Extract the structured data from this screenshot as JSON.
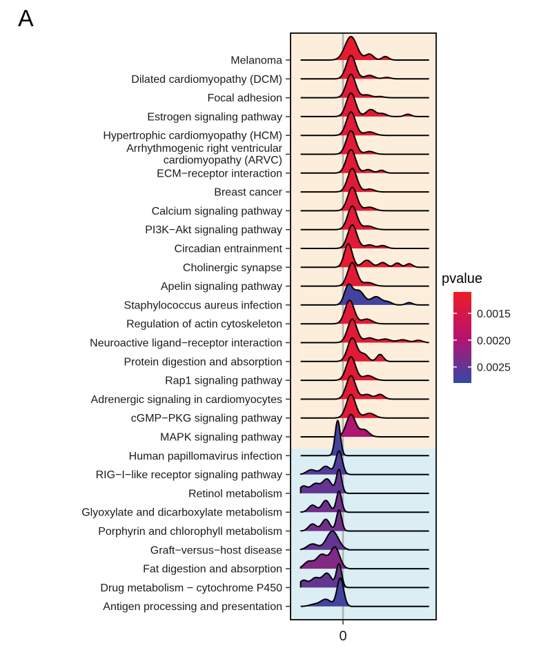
{
  "panel_label": "A",
  "chart_data": {
    "type": "ridgeline",
    "title": "",
    "xlabel": "",
    "ylabel": "",
    "x_ticks": [
      0
    ],
    "xlim": [
      -3.5,
      7.5
    ],
    "grid": false,
    "legend": {
      "title": "pvalue",
      "placement": "right",
      "ticks": [
        0.0015,
        0.002,
        0.0025
      ],
      "tick_labels": [
        "0.0015",
        "0.0020",
        "0.0025"
      ],
      "range": [
        0.0011,
        0.0028
      ],
      "colors": {
        "low": "#ee1c25",
        "mid": "#b7126e",
        "high": "#3349a6"
      }
    },
    "backgrounds": {
      "upregulated": "#fdeedb",
      "downregulated": "#daeef3"
    },
    "series": [
      {
        "name": "Melanoma",
        "peak": 0.6,
        "pvalue": 0.0012,
        "peaks": [
          [
            0.6,
            0.45,
            1.0
          ],
          [
            2.0,
            0.3,
            0.25
          ],
          [
            3.2,
            0.25,
            0.15
          ]
        ],
        "tail": 4.4
      },
      {
        "name": "Dilated cardiomyopathy (DCM)",
        "peak": 0.6,
        "pvalue": 0.0013,
        "peaks": [
          [
            0.6,
            0.35,
            1.0
          ],
          [
            2.0,
            0.35,
            0.15
          ],
          [
            3.3,
            0.3,
            0.06
          ]
        ],
        "tail": 4.2
      },
      {
        "name": "Focal adhesion",
        "peak": 0.6,
        "pvalue": 0.0013,
        "peaks": [
          [
            0.6,
            0.35,
            1.0
          ],
          [
            1.8,
            0.35,
            0.12
          ],
          [
            2.8,
            0.3,
            0.05
          ]
        ],
        "tail": 3.8
      },
      {
        "name": "Estrogen signaling pathway",
        "peak": 0.6,
        "pvalue": 0.0013,
        "peaks": [
          [
            0.6,
            0.35,
            1.0
          ],
          [
            2.1,
            0.35,
            0.3
          ],
          [
            3.0,
            0.3,
            0.12
          ],
          [
            4.9,
            0.25,
            0.1
          ]
        ],
        "tail": 5.8
      },
      {
        "name": "Hypertrophic cardiomyopathy (HCM)",
        "peak": 0.6,
        "pvalue": 0.0013,
        "peaks": [
          [
            0.6,
            0.35,
            1.0
          ],
          [
            2.0,
            0.4,
            0.15
          ]
        ],
        "tail": 3.6
      },
      {
        "name": "Arrhythmogenic right ventricular\ncardiomyopathy (ARVC)",
        "peak": 0.6,
        "pvalue": 0.0013,
        "peaks": [
          [
            0.6,
            0.35,
            1.0
          ],
          [
            2.0,
            0.35,
            0.12
          ]
        ],
        "tail": 3.6
      },
      {
        "name": "ECM−receptor interaction",
        "peak": 0.6,
        "pvalue": 0.0013,
        "peaks": [
          [
            0.6,
            0.35,
            1.0
          ],
          [
            1.9,
            0.3,
            0.15
          ],
          [
            2.9,
            0.25,
            0.12
          ]
        ],
        "tail": 3.8
      },
      {
        "name": "Breast cancer",
        "peak": 0.7,
        "pvalue": 0.0013,
        "peaks": [
          [
            0.7,
            0.35,
            1.0
          ],
          [
            2.0,
            0.35,
            0.12
          ]
        ],
        "tail": 3.8
      },
      {
        "name": "Calcium signaling pathway",
        "peak": 0.7,
        "pvalue": 0.0013,
        "peaks": [
          [
            0.7,
            0.35,
            1.0
          ],
          [
            2.0,
            0.4,
            0.15
          ]
        ],
        "tail": 4.0
      },
      {
        "name": "PI3K−Akt signaling pathway",
        "peak": 0.7,
        "pvalue": 0.0013,
        "peaks": [
          [
            0.7,
            0.35,
            1.0
          ],
          [
            1.9,
            0.4,
            0.15
          ]
        ],
        "tail": 3.8
      },
      {
        "name": "Circadian entrainment",
        "peak": 0.7,
        "pvalue": 0.0013,
        "peaks": [
          [
            0.7,
            0.35,
            1.0
          ],
          [
            2.0,
            0.35,
            0.15
          ],
          [
            3.0,
            0.3,
            0.12
          ]
        ],
        "tail": 4.4
      },
      {
        "name": "Cholinergic synapse",
        "peak": 0.4,
        "pvalue": 0.0012,
        "peaks": [
          [
            0.4,
            0.3,
            1.0
          ],
          [
            1.8,
            0.35,
            0.3
          ],
          [
            3.0,
            0.3,
            0.2
          ],
          [
            4.1,
            0.25,
            0.18
          ],
          [
            5.0,
            0.25,
            0.15
          ]
        ],
        "tail": 6.0
      },
      {
        "name": "Apelin signaling pathway",
        "peak": 0.7,
        "pvalue": 0.0013,
        "peaks": [
          [
            0.7,
            0.35,
            1.0
          ],
          [
            1.9,
            0.4,
            0.15
          ]
        ],
        "tail": 3.6
      },
      {
        "name": "Staphylococcus aureus infection",
        "peak": 0.4,
        "pvalue": 0.0027,
        "peaks": [
          [
            0.4,
            0.3,
            0.8
          ],
          [
            1.2,
            0.4,
            0.6
          ],
          [
            2.5,
            0.4,
            0.35
          ],
          [
            3.4,
            0.3,
            0.12
          ],
          [
            5.0,
            0.25,
            0.1
          ]
        ],
        "tail": 5.8
      },
      {
        "name": "Regulation of actin cytoskeleton",
        "peak": 0.5,
        "pvalue": 0.0013,
        "peaks": [
          [
            0.5,
            0.35,
            1.0
          ],
          [
            1.8,
            0.4,
            0.2
          ]
        ],
        "tail": 3.6
      },
      {
        "name": "Neuroactive ligand−receptor interaction",
        "peak": 0.7,
        "pvalue": 0.0013,
        "peaks": [
          [
            0.7,
            0.35,
            1.0
          ],
          [
            2.0,
            0.4,
            0.2
          ],
          [
            3.2,
            0.4,
            0.15
          ],
          [
            4.5,
            0.4,
            0.12
          ],
          [
            5.7,
            0.3,
            0.1
          ]
        ],
        "tail": 6.5
      },
      {
        "name": "Protein digestion and absorption",
        "peak": 0.7,
        "pvalue": 0.0013,
        "peaks": [
          [
            0.7,
            0.35,
            1.0
          ],
          [
            1.6,
            0.3,
            0.3
          ],
          [
            2.8,
            0.25,
            0.3
          ]
        ],
        "tail": 3.8
      },
      {
        "name": "Rap1 signaling pathway",
        "peak": 0.6,
        "pvalue": 0.0013,
        "peaks": [
          [
            0.6,
            0.35,
            1.0
          ],
          [
            1.9,
            0.4,
            0.2
          ]
        ],
        "tail": 3.8
      },
      {
        "name": "Adrenergic signaling in cardiomyocytes",
        "peak": 0.6,
        "pvalue": 0.0013,
        "peaks": [
          [
            0.6,
            0.35,
            1.0
          ],
          [
            1.8,
            0.35,
            0.2
          ],
          [
            2.8,
            0.3,
            0.2
          ]
        ],
        "tail": 4.0
      },
      {
        "name": "cGMP−PKG signaling pathway",
        "peak": 0.6,
        "pvalue": 0.0013,
        "peaks": [
          [
            0.6,
            0.35,
            1.0
          ],
          [
            2.0,
            0.4,
            0.2
          ]
        ],
        "tail": 3.8
      },
      {
        "name": "MAPK signaling pathway",
        "peak": 0.6,
        "pvalue": 0.002,
        "peaks": [
          [
            0.6,
            0.35,
            0.95
          ],
          [
            1.6,
            0.35,
            0.3
          ]
        ],
        "tail": 3.4
      },
      {
        "name": "Human papillomavirus infection",
        "peak": -0.4,
        "pvalue": 0.0027,
        "peaks": [
          [
            -0.4,
            0.2,
            1.5
          ]
        ],
        "tail": 0.6
      },
      {
        "name": "RIG−I−like receptor signaling pathway",
        "peak": -0.3,
        "pvalue": 0.0026,
        "peaks": [
          [
            -0.3,
            0.25,
            1.0
          ],
          [
            -1.3,
            0.35,
            0.35
          ],
          [
            -2.4,
            0.35,
            0.2
          ]
        ],
        "tail": 0.6
      },
      {
        "name": "Retinol metabolism",
        "peak": -0.3,
        "pvalue": 0.0025,
        "peaks": [
          [
            -0.3,
            0.2,
            1.0
          ],
          [
            -1.2,
            0.35,
            0.6
          ],
          [
            -2.1,
            0.35,
            0.4
          ],
          [
            -3.0,
            0.3,
            0.3
          ]
        ],
        "tail": 0.4
      },
      {
        "name": "Glyoxylate and dicarboxylate metabolism",
        "peak": -0.3,
        "pvalue": 0.0024,
        "peaks": [
          [
            -0.3,
            0.2,
            0.9
          ],
          [
            -1.3,
            0.3,
            0.5
          ],
          [
            -2.3,
            0.3,
            0.3
          ]
        ],
        "tail": 0.4
      },
      {
        "name": "Porphyrin and chlorophyll metabolism",
        "peak": -0.3,
        "pvalue": 0.0024,
        "peaks": [
          [
            -0.3,
            0.2,
            0.9
          ],
          [
            -1.3,
            0.3,
            0.5
          ],
          [
            -2.3,
            0.3,
            0.3
          ]
        ],
        "tail": 0.4
      },
      {
        "name": "Graft−versus−host disease",
        "peak": -0.8,
        "pvalue": 0.0025,
        "peaks": [
          [
            -0.8,
            0.45,
            0.8
          ],
          [
            -2.3,
            0.4,
            0.25
          ]
        ],
        "tail": 0.4
      },
      {
        "name": "Fat digestion and absorption",
        "peak": -0.6,
        "pvalue": 0.0023,
        "peaks": [
          [
            -0.6,
            0.35,
            0.9
          ],
          [
            -1.6,
            0.4,
            0.6
          ],
          [
            -2.6,
            0.35,
            0.3
          ]
        ],
        "tail": 0.5
      },
      {
        "name": "Drug metabolism − cytochrome P450",
        "peak": -0.3,
        "pvalue": 0.0025,
        "peaks": [
          [
            -0.3,
            0.2,
            1.0
          ],
          [
            -1.2,
            0.35,
            0.6
          ],
          [
            -2.1,
            0.35,
            0.4
          ],
          [
            -3.0,
            0.3,
            0.3
          ]
        ],
        "tail": 0.4
      },
      {
        "name": "Antigen processing and presentation",
        "peak": -0.2,
        "pvalue": 0.0027,
        "peaks": [
          [
            -0.2,
            0.25,
            1.2
          ],
          [
            -1.3,
            0.4,
            0.3
          ],
          [
            -2.2,
            0.35,
            0.08
          ]
        ],
        "tail": 0.6
      }
    ]
  }
}
